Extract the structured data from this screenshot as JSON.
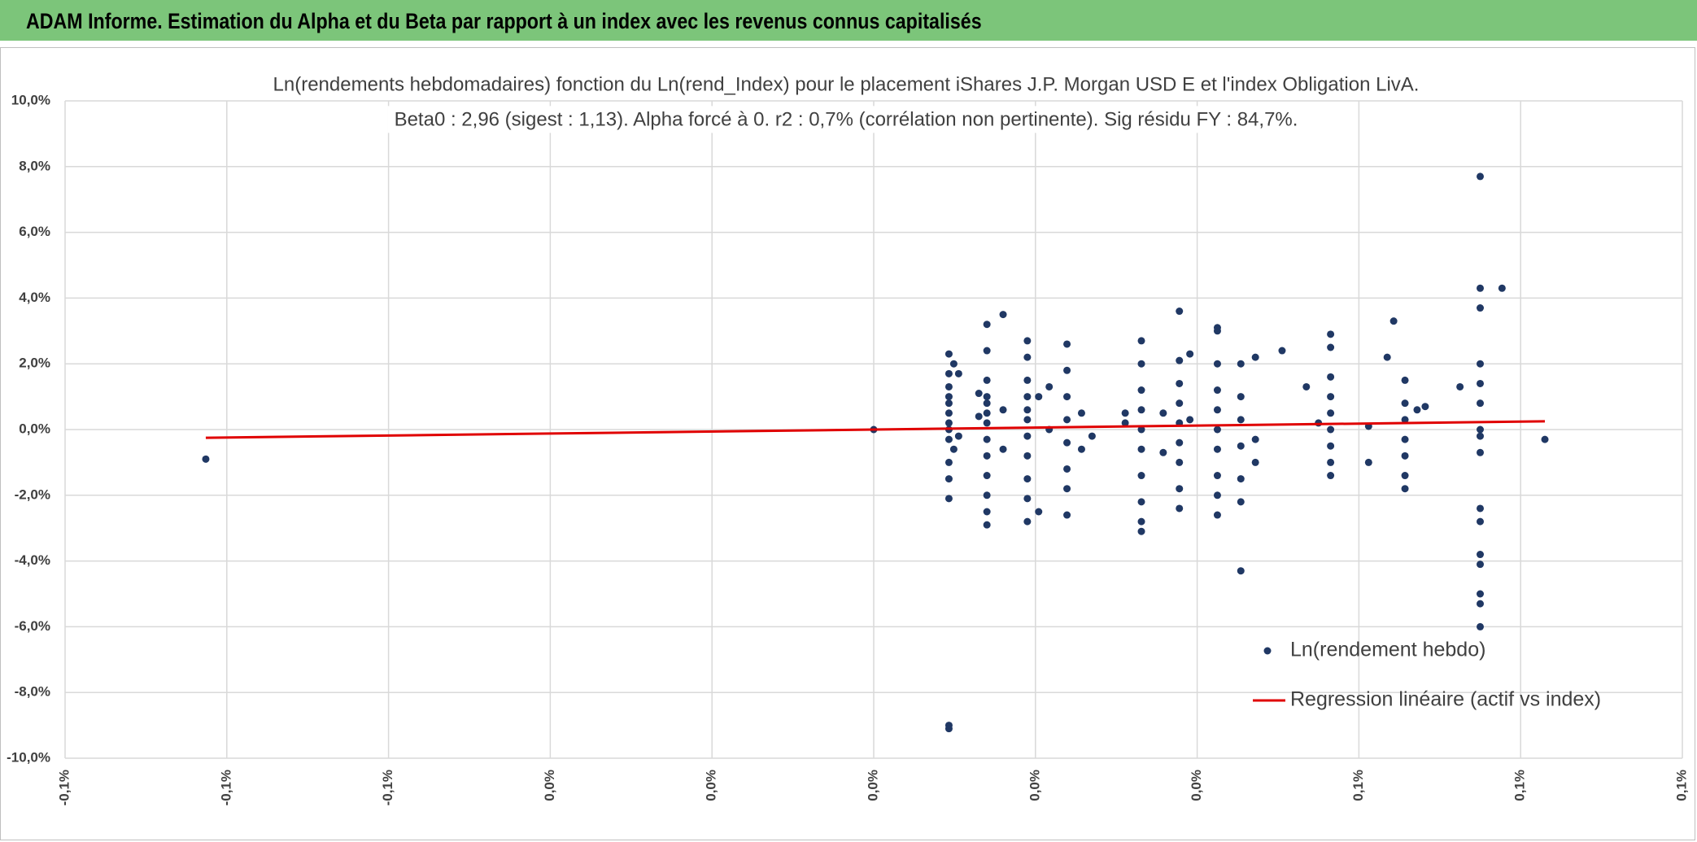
{
  "header": {
    "title": "ADAM Informe. Estimation du Alpha et du Beta par rapport à un index avec les revenus connus capitalisés"
  },
  "chart_data": {
    "type": "scatter",
    "title": "Ln(rendements hebdomadaires) fonction du Ln(rend_Index) pour le placement iShares J.P. Morgan USD E et l'index Obligation LivA.",
    "subtitle": "Beta0 : 2,96 (sigest : 1,13). Alpha forcé à 0. r2 : 0,7% (corrélation non pertinente). Sig résidu FY : 84,7%.",
    "xlim": [
      -0.1,
      0.1
    ],
    "xticks": [
      {
        "value": -0.1,
        "label": "-0,1%"
      },
      {
        "value": -0.08,
        "label": "-0,1%"
      },
      {
        "value": -0.06,
        "label": "-0,1%"
      },
      {
        "value": -0.04,
        "label": "0,0%"
      },
      {
        "value": -0.02,
        "label": "0,0%"
      },
      {
        "value": 0,
        "label": "0,0%"
      },
      {
        "value": 0.02,
        "label": "0,0%"
      },
      {
        "value": 0.04,
        "label": "0,0%"
      },
      {
        "value": 0.06,
        "label": "0,1%"
      },
      {
        "value": 0.08,
        "label": "0,1%"
      },
      {
        "value": 0.1,
        "label": "0,1%"
      }
    ],
    "ylim": [
      -10,
      10
    ],
    "yticks": [
      {
        "value": -10,
        "label": "-10,0%"
      },
      {
        "value": -8,
        "label": "-8,0%"
      },
      {
        "value": -6,
        "label": "-6,0%"
      },
      {
        "value": -4,
        "label": "-4,0%"
      },
      {
        "value": -2,
        "label": "-2,0%"
      },
      {
        "value": 0,
        "label": "0,0%"
      },
      {
        "value": 2,
        "label": "2,0%"
      },
      {
        "value": 4,
        "label": "4,0%"
      },
      {
        "value": 6,
        "label": "6,0%"
      },
      {
        "value": 8,
        "label": "8,0%"
      },
      {
        "value": 10,
        "label": "10,0%"
      }
    ],
    "grid": true,
    "legend": "lower right",
    "series": [
      {
        "name": "Ln(rendement hebdo)",
        "color": "#203864",
        "type": "scatter",
        "x": [
          -0.0826,
          0,
          0.0093,
          0.0093,
          0.0093,
          0.0093,
          0.0093,
          0.0093,
          0.0093,
          0.0093,
          0.0093,
          0.0093,
          0.0093,
          0.0093,
          0.0093,
          0.0093,
          0.0099,
          0.0099,
          0.0105,
          0.0105,
          0.013,
          0.013,
          0.014,
          0.014,
          0.014,
          0.014,
          0.014,
          0.014,
          0.014,
          0.014,
          0.014,
          0.014,
          0.014,
          0.014,
          0.014,
          0.016,
          0.016,
          0.016,
          0.019,
          0.019,
          0.019,
          0.019,
          0.019,
          0.019,
          0.019,
          0.019,
          0.019,
          0.019,
          0.019,
          0.0204,
          0.0204,
          0.0217,
          0.0217,
          0.0239,
          0.0239,
          0.0239,
          0.0239,
          0.0239,
          0.0239,
          0.0239,
          0.0239,
          0.0257,
          0.0257,
          0.027,
          0.0311,
          0.0311,
          0.0331,
          0.0331,
          0.0331,
          0.0331,
          0.0331,
          0.0331,
          0.0331,
          0.0331,
          0.0331,
          0.0331,
          0.0358,
          0.0358,
          0.0378,
          0.0378,
          0.0378,
          0.0378,
          0.0378,
          0.0378,
          0.0378,
          0.0378,
          0.0378,
          0.0391,
          0.0391,
          0.0425,
          0.0425,
          0.0425,
          0.0425,
          0.0425,
          0.0425,
          0.0425,
          0.0425,
          0.0425,
          0.0425,
          0.0454,
          0.0454,
          0.0454,
          0.0454,
          0.0454,
          0.0454,
          0.0454,
          0.0472,
          0.0472,
          0.0472,
          0.0505,
          0.0535,
          0.055,
          0.0565,
          0.0565,
          0.0565,
          0.0565,
          0.0565,
          0.0565,
          0.0565,
          0.0565,
          0.0565,
          0.0612,
          0.0612,
          0.0635,
          0.0643,
          0.0657,
          0.0657,
          0.0657,
          0.0657,
          0.0657,
          0.0657,
          0.0657,
          0.0672,
          0.0682,
          0.0725,
          0.075,
          0.075,
          0.075,
          0.075,
          0.075,
          0.075,
          0.075,
          0.075,
          0.075,
          0.075,
          0.075,
          0.075,
          0.075,
          0.075,
          0.075,
          0.075,
          0.0777,
          0.083
        ],
        "values": [
          -0.9,
          0,
          2.3,
          1.7,
          1.3,
          1.0,
          0.8,
          0.5,
          0.2,
          0,
          -0.3,
          -1.0,
          -1.5,
          -2.1,
          -9.0,
          -9.1,
          2.0,
          -0.6,
          1.7,
          -0.2,
          1.1,
          0.4,
          3.2,
          2.4,
          1.5,
          1.0,
          0.8,
          0.5,
          0.2,
          -0.3,
          -0.8,
          -1.4,
          -2.0,
          -2.5,
          -2.9,
          3.5,
          0.6,
          -0.6,
          2.7,
          2.2,
          1.5,
          1.0,
          0.6,
          0.3,
          -0.2,
          -0.8,
          -1.5,
          -2.1,
          -2.8,
          -2.5,
          1.0,
          1.3,
          0.0,
          2.6,
          1.8,
          1.0,
          0.3,
          -0.4,
          -1.2,
          -1.8,
          -2.6,
          0.5,
          -0.6,
          -0.2,
          0.5,
          0.2,
          2.7,
          2.0,
          1.2,
          0.6,
          0.0,
          -0.6,
          -1.4,
          -2.2,
          -2.8,
          -3.1,
          0.5,
          -0.7,
          3.6,
          2.1,
          1.4,
          0.8,
          0.2,
          -0.4,
          -1.0,
          -1.8,
          -2.4,
          2.3,
          0.3,
          3.1,
          3.0,
          2.0,
          1.2,
          0.6,
          0.0,
          -0.6,
          -1.4,
          -2.0,
          -2.6,
          2.0,
          1.0,
          0.3,
          -0.5,
          -1.5,
          -2.2,
          -4.3,
          2.2,
          -0.3,
          -1.0,
          2.4,
          1.3,
          0.2,
          2.9,
          2.5,
          1.6,
          1.0,
          0.5,
          0.0,
          -0.5,
          -1.0,
          -1.4,
          0.1,
          -1.0,
          2.2,
          3.3,
          1.5,
          0.8,
          0.3,
          -0.3,
          -0.8,
          -1.4,
          -1.8,
          0.6,
          0.7,
          1.3,
          7.7,
          4.3,
          3.7,
          2.0,
          1.4,
          0.8,
          0.0,
          -0.2,
          -0.7,
          -2.4,
          -2.8,
          -3.8,
          -4.1,
          -5.0,
          -5.3,
          -6.0,
          4.3,
          -0.3
        ]
      },
      {
        "name": "Regression linéaire (actif vs index)",
        "color": "#e00000",
        "type": "line",
        "x": [
          -0.0826,
          0.083
        ],
        "values": [
          -0.25,
          0.25
        ]
      }
    ]
  }
}
